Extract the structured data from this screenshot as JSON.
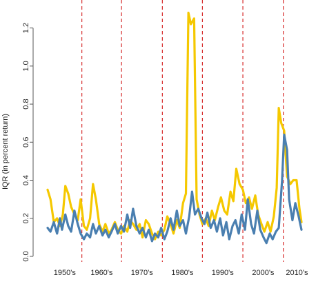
{
  "chart_data": {
    "type": "line",
    "title": "",
    "xlabel": "",
    "ylabel": "IQR (in percent return)",
    "ylim": [
      0,
      1.3
    ],
    "y_ticks": [
      "0.0",
      "0.2",
      "0.4",
      "0.6",
      "0.8",
      "1.0",
      "1.2"
    ],
    "x_range": [
      1948,
      2014
    ],
    "decade_labels": [
      "1950's",
      "1960's",
      "1970's",
      "1980's",
      "1990's",
      "2000's",
      "2010's"
    ],
    "decade_boundaries": [
      1957.8,
      1967.4,
      1977.3,
      1987.0,
      1996.8,
      2006.6
    ],
    "grid": false,
    "legend": "none",
    "colors": {
      "series_a": "#4a7fb0",
      "series_b": "#f5c800",
      "divider": "#d62b2b",
      "axis": "#555555"
    },
    "series": [
      {
        "color": "#4a7fb0",
        "points": [
          [
            1949.5,
            0.15
          ],
          [
            1950.2,
            0.13
          ],
          [
            1951,
            0.18
          ],
          [
            1951.8,
            0.12
          ],
          [
            1952.5,
            0.2
          ],
          [
            1953,
            0.14
          ],
          [
            1953.8,
            0.22
          ],
          [
            1954.5,
            0.16
          ],
          [
            1955.2,
            0.13
          ],
          [
            1956,
            0.24
          ],
          [
            1956.8,
            0.17
          ],
          [
            1957.5,
            0.12
          ],
          [
            1958.3,
            0.09
          ],
          [
            1959,
            0.12
          ],
          [
            1959.8,
            0.1
          ],
          [
            1960.5,
            0.17
          ],
          [
            1961.2,
            0.12
          ],
          [
            1962,
            0.16
          ],
          [
            1962.8,
            0.11
          ],
          [
            1963.5,
            0.14
          ],
          [
            1964.3,
            0.1
          ],
          [
            1965,
            0.13
          ],
          [
            1965.8,
            0.17
          ],
          [
            1966.5,
            0.12
          ],
          [
            1967.3,
            0.16
          ],
          [
            1968,
            0.13
          ],
          [
            1968.8,
            0.22
          ],
          [
            1969.5,
            0.15
          ],
          [
            1970.2,
            0.25
          ],
          [
            1971,
            0.16
          ],
          [
            1971.8,
            0.12
          ],
          [
            1972.5,
            0.15
          ],
          [
            1973.3,
            0.1
          ],
          [
            1974,
            0.14
          ],
          [
            1974.8,
            0.08
          ],
          [
            1975.5,
            0.12
          ],
          [
            1976.3,
            0.1
          ],
          [
            1977,
            0.15
          ],
          [
            1977.8,
            0.09
          ],
          [
            1978.5,
            0.13
          ],
          [
            1979.3,
            0.2
          ],
          [
            1980,
            0.14
          ],
          [
            1980.8,
            0.24
          ],
          [
            1981.5,
            0.16
          ],
          [
            1982.3,
            0.19
          ],
          [
            1983,
            0.12
          ],
          [
            1983.8,
            0.21
          ],
          [
            1984.5,
            0.34
          ],
          [
            1985.2,
            0.22
          ],
          [
            1986,
            0.25
          ],
          [
            1986.8,
            0.2
          ],
          [
            1987.5,
            0.17
          ],
          [
            1988.2,
            0.23
          ],
          [
            1989,
            0.15
          ],
          [
            1989.8,
            0.19
          ],
          [
            1990.5,
            0.13
          ],
          [
            1991.3,
            0.2
          ],
          [
            1992,
            0.11
          ],
          [
            1992.8,
            0.18
          ],
          [
            1993.5,
            0.09
          ],
          [
            1994.3,
            0.16
          ],
          [
            1995,
            0.19
          ],
          [
            1995.8,
            0.12
          ],
          [
            1996.5,
            0.22
          ],
          [
            1997.3,
            0.14
          ],
          [
            1998,
            0.3
          ],
          [
            1998.8,
            0.17
          ],
          [
            1999.5,
            0.12
          ],
          [
            2000.3,
            0.24
          ],
          [
            2001,
            0.14
          ],
          [
            2001.8,
            0.1
          ],
          [
            2002.5,
            0.07
          ],
          [
            2003.3,
            0.12
          ],
          [
            2004,
            0.09
          ],
          [
            2004.8,
            0.13
          ],
          [
            2005.5,
            0.15
          ],
          [
            2006.3,
            0.4
          ],
          [
            2006.8,
            0.64
          ],
          [
            2007.5,
            0.56
          ],
          [
            2008,
            0.3
          ],
          [
            2008.8,
            0.19
          ],
          [
            2009.5,
            0.28
          ],
          [
            2010.3,
            0.21
          ],
          [
            2011,
            0.14
          ]
        ]
      },
      {
        "color": "#f5c800",
        "points": [
          [
            1949.5,
            0.35
          ],
          [
            1950.2,
            0.3
          ],
          [
            1951,
            0.18
          ],
          [
            1951.8,
            0.2
          ],
          [
            1952.5,
            0.16
          ],
          [
            1953.2,
            0.22
          ],
          [
            1953.8,
            0.37
          ],
          [
            1954.5,
            0.33
          ],
          [
            1955.2,
            0.26
          ],
          [
            1956,
            0.22
          ],
          [
            1956.8,
            0.19
          ],
          [
            1957.5,
            0.3
          ],
          [
            1958.3,
            0.16
          ],
          [
            1959,
            0.14
          ],
          [
            1959.8,
            0.2
          ],
          [
            1960.5,
            0.38
          ],
          [
            1961.2,
            0.3
          ],
          [
            1962,
            0.17
          ],
          [
            1962.8,
            0.13
          ],
          [
            1963.5,
            0.17
          ],
          [
            1964.3,
            0.12
          ],
          [
            1965,
            0.14
          ],
          [
            1965.8,
            0.18
          ],
          [
            1966.5,
            0.14
          ],
          [
            1967.3,
            0.12
          ],
          [
            1968,
            0.16
          ],
          [
            1968.8,
            0.13
          ],
          [
            1969.5,
            0.19
          ],
          [
            1970.2,
            0.17
          ],
          [
            1971,
            0.14
          ],
          [
            1971.8,
            0.17
          ],
          [
            1972.5,
            0.1
          ],
          [
            1973.3,
            0.19
          ],
          [
            1974,
            0.17
          ],
          [
            1974.8,
            0.12
          ],
          [
            1975.5,
            0.09
          ],
          [
            1976.3,
            0.13
          ],
          [
            1977,
            0.11
          ],
          [
            1977.8,
            0.14
          ],
          [
            1978.5,
            0.21
          ],
          [
            1979.3,
            0.17
          ],
          [
            1980,
            0.12
          ],
          [
            1980.8,
            0.19
          ],
          [
            1981.5,
            0.15
          ],
          [
            1982.3,
            0.28
          ],
          [
            1983,
            0.33
          ],
          [
            1983.6,
            1.28
          ],
          [
            1984.2,
            1.22
          ],
          [
            1985,
            1.25
          ],
          [
            1985.6,
            0.3
          ],
          [
            1986.3,
            0.22
          ],
          [
            1987,
            0.17
          ],
          [
            1987.8,
            0.2
          ],
          [
            1988.5,
            0.16
          ],
          [
            1989.3,
            0.24
          ],
          [
            1990,
            0.19
          ],
          [
            1990.8,
            0.26
          ],
          [
            1991.5,
            0.31
          ],
          [
            1992.3,
            0.24
          ],
          [
            1993,
            0.22
          ],
          [
            1993.8,
            0.34
          ],
          [
            1994.5,
            0.29
          ],
          [
            1995.2,
            0.46
          ],
          [
            1996,
            0.38
          ],
          [
            1996.8,
            0.35
          ],
          [
            1997.5,
            0.28
          ],
          [
            1998.3,
            0.31
          ],
          [
            1999,
            0.25
          ],
          [
            1999.8,
            0.32
          ],
          [
            2000.5,
            0.22
          ],
          [
            2001.3,
            0.17
          ],
          [
            2002,
            0.13
          ],
          [
            2002.8,
            0.18
          ],
          [
            2003.5,
            0.13
          ],
          [
            2004.3,
            0.21
          ],
          [
            2005,
            0.36
          ],
          [
            2005.5,
            0.78
          ],
          [
            2006.1,
            0.7
          ],
          [
            2006.8,
            0.66
          ],
          [
            2007.5,
            0.42
          ],
          [
            2008.3,
            0.38
          ],
          [
            2009,
            0.4
          ],
          [
            2009.8,
            0.4
          ],
          [
            2010.5,
            0.25
          ],
          [
            2011,
            0.18
          ]
        ]
      }
    ]
  }
}
